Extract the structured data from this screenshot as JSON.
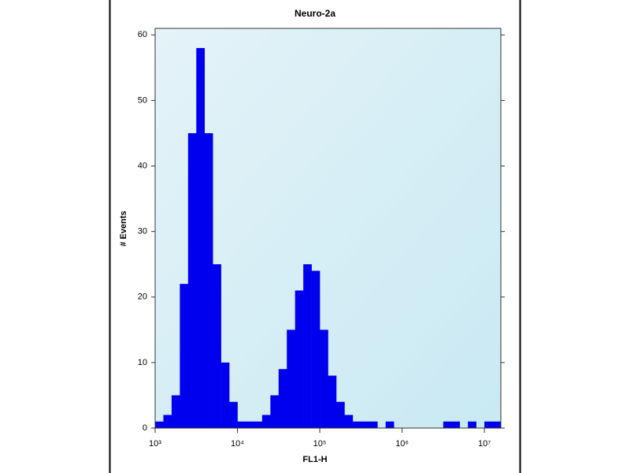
{
  "chart_data": {
    "type": "histogram",
    "title": "Neuro-2a",
    "x_label": "FL1-H",
    "y_label": "# Events",
    "x_log": true,
    "color": "#0000ee",
    "bins": [
      1000,
      1259,
      1585,
      1995,
      2512,
      3162,
      3981,
      5012,
      6310,
      7943,
      10000,
      12589,
      15849,
      19953,
      25119,
      31623,
      39811,
      50119,
      63096,
      79433,
      100000,
      125893,
      158489,
      199526,
      251189,
      316228,
      398107,
      501187,
      630957,
      794328,
      1000000,
      1258925,
      1584893,
      1995262,
      2511886,
      3162278,
      3981072,
      5011872,
      6309573,
      7943282,
      10000000,
      12589254,
      15848932
    ],
    "counts": [
      1,
      2,
      5,
      22,
      45,
      58,
      45,
      25,
      10,
      4,
      1,
      1,
      1,
      2,
      5,
      9,
      15,
      21,
      25,
      24,
      15,
      8,
      4,
      2,
      1,
      1,
      1,
      0,
      1,
      0,
      0,
      0,
      0,
      0,
      0,
      1,
      1,
      0,
      1,
      0,
      1,
      1
    ],
    "xlim": [
      1000,
      15848932
    ],
    "xticks": [
      {
        "value": 1000,
        "label": "10³"
      },
      {
        "value": 10000,
        "label": "10⁴"
      },
      {
        "value": 100000,
        "label": "10⁵"
      },
      {
        "value": 1000000,
        "label": "10⁶"
      },
      {
        "value": 10000000,
        "label": "10⁷"
      }
    ],
    "ylim": [
      0,
      61
    ],
    "yticks": [
      0,
      10,
      20,
      30,
      40,
      50,
      60
    ]
  }
}
